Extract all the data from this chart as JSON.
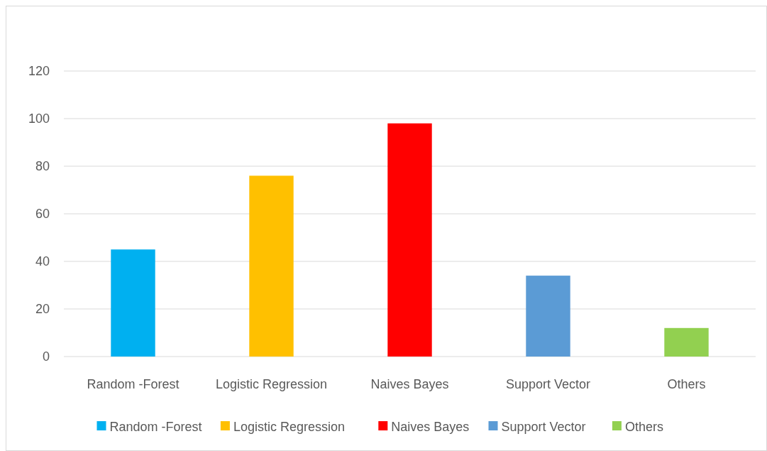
{
  "chart_data": {
    "type": "bar",
    "categories": [
      "Random -Forest",
      "Logistic Regression",
      "Naives Bayes",
      "Support Vector",
      "Others"
    ],
    "series": [
      {
        "name": "Random -Forest",
        "color": "#00b0f0",
        "values": [
          45,
          null,
          null,
          null,
          null
        ]
      },
      {
        "name": "Logistic Regression",
        "color": "#ffc000",
        "values": [
          null,
          76,
          null,
          null,
          null
        ]
      },
      {
        "name": "Naives Bayes",
        "color": "#ff0000",
        "values": [
          null,
          null,
          98,
          null,
          null
        ]
      },
      {
        "name": "Support Vector",
        "color": "#5b9bd5",
        "values": [
          null,
          null,
          null,
          34,
          null
        ]
      },
      {
        "name": "Others",
        "color": "#92d050",
        "values": [
          null,
          null,
          null,
          null,
          12
        ]
      }
    ],
    "ylim": [
      0,
      120
    ],
    "yticks": [
      0,
      20,
      40,
      60,
      80,
      100,
      120
    ],
    "grid": "y",
    "legend": "bottom"
  }
}
